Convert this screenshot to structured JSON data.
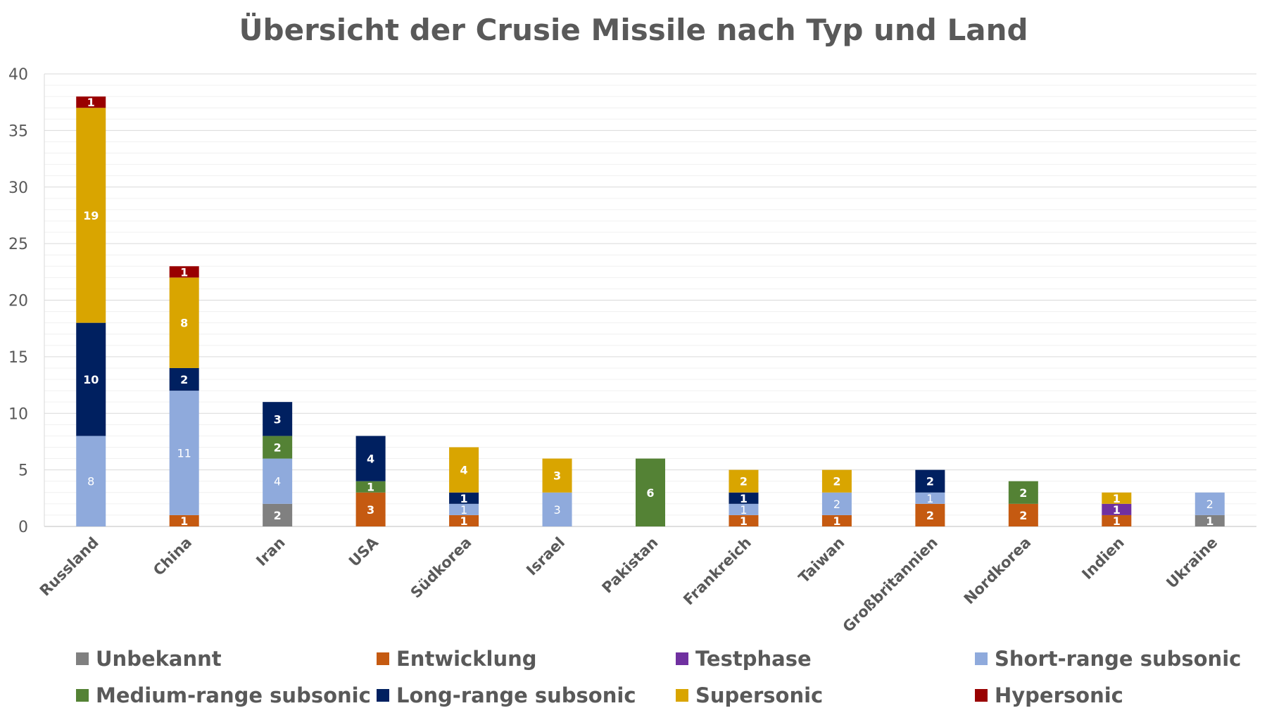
{
  "chart_data": {
    "type": "bar",
    "stacked": true,
    "title": "Übersicht der Crusie Missile nach Typ und Land",
    "xlabel": "",
    "ylabel": "",
    "ylim": [
      0,
      40
    ],
    "yticks": [
      0,
      5,
      10,
      15,
      20,
      25,
      30,
      35,
      40
    ],
    "grid": true,
    "legend_position": "bottom",
    "categories": [
      "Russland",
      "China",
      "Iran",
      "USA",
      "Südkorea",
      "Israel",
      "Pakistan",
      "Frankreich",
      "Taiwan",
      "Großbritannien",
      "Nordkorea",
      "Indien",
      "Ukraine"
    ],
    "series": [
      {
        "name": "Unbekannt",
        "color": "#808080",
        "label_color": "#ffffff",
        "label_bold": true,
        "values": [
          0,
          0,
          2,
          0,
          0,
          0,
          0,
          0,
          0,
          0,
          0,
          0,
          1
        ]
      },
      {
        "name": "Entwicklung",
        "color": "#C55A11",
        "label_color": "#ffffff",
        "label_bold": true,
        "values": [
          0,
          1,
          0,
          3,
          1,
          0,
          0,
          1,
          1,
          2,
          2,
          1,
          0
        ]
      },
      {
        "name": "Testphase",
        "color": "#7030A0",
        "label_color": "#ffffff",
        "label_bold": true,
        "values": [
          0,
          0,
          0,
          0,
          0,
          0,
          0,
          0,
          0,
          0,
          0,
          1,
          0
        ]
      },
      {
        "name": "Short-range subsonic",
        "color": "#8FAADC",
        "label_color": "#ffffff",
        "label_bold": false,
        "values": [
          8,
          11,
          4,
          0,
          1,
          3,
          0,
          1,
          2,
          1,
          0,
          0,
          2
        ]
      },
      {
        "name": "Medium-range subsonic",
        "color": "#548235",
        "label_color": "#ffffff",
        "label_bold": true,
        "values": [
          0,
          0,
          2,
          1,
          0,
          0,
          6,
          0,
          0,
          0,
          2,
          0,
          0
        ]
      },
      {
        "name": "Long-range subsonic",
        "color": "#002060",
        "label_color": "#ffffff",
        "label_bold": true,
        "values": [
          10,
          2,
          3,
          4,
          1,
          0,
          0,
          1,
          0,
          2,
          0,
          0,
          0
        ]
      },
      {
        "name": "Supersonic",
        "color": "#D9A500",
        "label_color": "#ffffff",
        "label_bold": true,
        "values": [
          19,
          8,
          0,
          0,
          4,
          3,
          0,
          2,
          2,
          0,
          0,
          1,
          0
        ]
      },
      {
        "name": "Hypersonic",
        "color": "#990000",
        "label_color": "#ffffff",
        "label_bold": true,
        "values": [
          1,
          1,
          0,
          0,
          0,
          0,
          0,
          0,
          0,
          0,
          0,
          0,
          0
        ]
      }
    ]
  }
}
